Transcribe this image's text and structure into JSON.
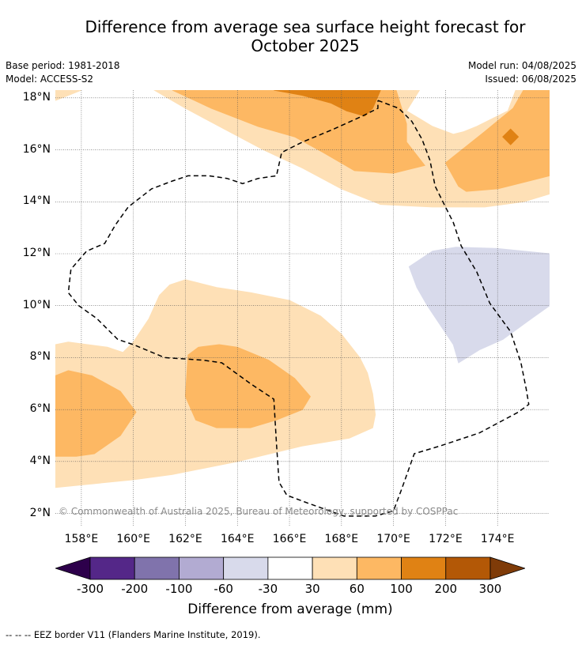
{
  "title_line1": "Difference from average sea surface height forecast for",
  "title_line2": "October 2025",
  "meta_left": [
    "Base period: 1981-2018",
    "Model: ACCESS-S2"
  ],
  "meta_right": [
    "Model run: 04/08/2025",
    "Issued: 06/08/2025"
  ],
  "copyright": "© Commonwealth of Australia 2025, Bureau of Meteorology, supported by COSPPac",
  "lat_labels": [
    {
      "text": "18°N",
      "value": 18
    },
    {
      "text": "16°N",
      "value": 16
    },
    {
      "text": "14°N",
      "value": 14
    },
    {
      "text": "12°N",
      "value": 12
    },
    {
      "text": "10°N",
      "value": 10
    },
    {
      "text": "8°N",
      "value": 8
    },
    {
      "text": "6°N",
      "value": 6
    },
    {
      "text": "4°N",
      "value": 4
    },
    {
      "text": "2°N",
      "value": 2
    }
  ],
  "lon_labels": [
    {
      "text": "158°E",
      "value": 158
    },
    {
      "text": "160°E",
      "value": 160
    },
    {
      "text": "162°E",
      "value": 162
    },
    {
      "text": "164°E",
      "value": 164
    },
    {
      "text": "166°E",
      "value": 166
    },
    {
      "text": "168°E",
      "value": 168
    },
    {
      "text": "170°E",
      "value": 170
    },
    {
      "text": "172°E",
      "value": 172
    },
    {
      "text": "174°E",
      "value": 174
    }
  ],
  "extent": {
    "lon": [
      157.0,
      176.0
    ],
    "lat": [
      1.5,
      18.3
    ]
  },
  "colorbar": {
    "label": "Difference from average (mm)",
    "ticks": [
      "-300",
      "-200",
      "-100",
      "-60",
      "-30",
      "30",
      "60",
      "100",
      "200",
      "300"
    ],
    "colors": [
      "#2d004b",
      "#542788",
      "#8073ac",
      "#b2abd2",
      "#d8daeb",
      "#ffffff",
      "#fee0b6",
      "#fdb863",
      "#e08214",
      "#b35806",
      "#7f3b08"
    ]
  },
  "regions": [
    {
      "level": "30 to 60",
      "color": "#fee0b6",
      "points": [
        [
          157,
          8.5
        ],
        [
          157.5,
          8.6
        ],
        [
          159,
          8.4
        ],
        [
          159.6,
          8.2
        ],
        [
          160,
          8.6
        ],
        [
          160.6,
          9.5
        ],
        [
          161,
          10.4
        ],
        [
          161.4,
          10.8
        ],
        [
          162,
          11
        ],
        [
          162.4,
          10.9
        ],
        [
          163.2,
          10.7
        ],
        [
          164.5,
          10.5
        ],
        [
          166,
          10.2
        ],
        [
          167.2,
          9.6
        ],
        [
          168,
          8.9
        ],
        [
          168.7,
          8
        ],
        [
          169,
          7.4
        ],
        [
          169.2,
          6.6
        ],
        [
          169.3,
          5.8
        ],
        [
          169.2,
          5.3
        ],
        [
          168.3,
          4.9
        ],
        [
          166.5,
          4.6
        ],
        [
          164,
          4
        ],
        [
          161.5,
          3.5
        ],
        [
          160,
          3.3
        ],
        [
          157,
          3
        ]
      ]
    },
    {
      "level": "60 to 100",
      "color": "#fdb863",
      "points": [
        [
          162.1,
          8.1
        ],
        [
          162.5,
          8.4
        ],
        [
          163.3,
          8.5
        ],
        [
          164,
          8.4
        ],
        [
          165.2,
          7.9
        ],
        [
          166.2,
          7.2
        ],
        [
          166.8,
          6.5
        ],
        [
          166.5,
          6
        ],
        [
          165.5,
          5.6
        ],
        [
          164.5,
          5.3
        ],
        [
          163.2,
          5.3
        ],
        [
          162.4,
          5.6
        ],
        [
          162,
          6.5
        ]
      ]
    },
    {
      "level": "60 to 100",
      "color": "#fdb863",
      "points": [
        [
          157,
          7.3
        ],
        [
          157.5,
          7.5
        ],
        [
          158.4,
          7.3
        ],
        [
          159.5,
          6.7
        ],
        [
          160.1,
          5.9
        ],
        [
          159.5,
          5
        ],
        [
          158.5,
          4.3
        ],
        [
          157.8,
          4.2
        ],
        [
          157,
          4.2
        ]
      ]
    },
    {
      "level": "30 to 60",
      "color": "#fee0b6",
      "points": [
        [
          157,
          18.3
        ],
        [
          157,
          17.9
        ],
        [
          157.5,
          18.1
        ],
        [
          158,
          18.3
        ]
      ]
    },
    {
      "level": "30 to 60",
      "color": "#fee0b6",
      "points": [
        [
          160.8,
          18.3
        ],
        [
          162,
          17.6
        ],
        [
          163.5,
          16.8
        ],
        [
          165,
          16
        ],
        [
          166.5,
          15.3
        ],
        [
          168,
          14.5
        ],
        [
          169.5,
          13.9
        ],
        [
          171.5,
          13.8
        ],
        [
          173.5,
          13.8
        ],
        [
          175,
          14
        ],
        [
          176,
          14.3
        ],
        [
          176,
          18.3
        ],
        [
          174.7,
          18.3
        ],
        [
          174.4,
          17.5
        ],
        [
          173.2,
          16.9
        ],
        [
          172.7,
          16.7
        ],
        [
          172.3,
          16.6
        ],
        [
          171.5,
          16.9
        ],
        [
          171,
          17.2
        ],
        [
          170.5,
          17.5
        ],
        [
          171,
          18.3
        ]
      ]
    },
    {
      "level": "60 to 100",
      "color": "#fdb863",
      "points": [
        [
          161.5,
          18.3
        ],
        [
          163,
          17.6
        ],
        [
          164.8,
          16.9
        ],
        [
          166.2,
          16.5
        ],
        [
          167.3,
          15.9
        ],
        [
          168.5,
          15.2
        ],
        [
          170,
          15.1
        ],
        [
          171.2,
          15.4
        ],
        [
          170.5,
          16.3
        ],
        [
          170.5,
          17
        ],
        [
          170.1,
          18.3
        ]
      ]
    },
    {
      "level": "100 to 200",
      "color": "#e08214",
      "points": [
        [
          165.4,
          18.3
        ],
        [
          166.5,
          18.1
        ],
        [
          167.6,
          17.8
        ],
        [
          168.2,
          17.5
        ],
        [
          168.9,
          17.3
        ],
        [
          169.2,
          17.6
        ],
        [
          169.5,
          18.3
        ]
      ]
    },
    {
      "level": "60 to 100",
      "color": "#fdb863",
      "points": [
        [
          172,
          15.5
        ],
        [
          173.5,
          16.7
        ],
        [
          174.6,
          17.6
        ],
        [
          175,
          18.3
        ],
        [
          176,
          18.3
        ],
        [
          176,
          15
        ],
        [
          175.2,
          14.8
        ],
        [
          174,
          14.5
        ],
        [
          172.8,
          14.4
        ],
        [
          172.5,
          14.6
        ]
      ]
    },
    {
      "level": "100 to 200",
      "color": "#e08214",
      "points": [
        [
          174.2,
          16.5
        ],
        [
          174.5,
          16.8
        ],
        [
          174.8,
          16.5
        ],
        [
          174.5,
          16.2
        ]
      ]
    },
    {
      "level": "-30 to -60",
      "color": "#d8daeb",
      "points": [
        [
          170.6,
          11.5
        ],
        [
          171.5,
          12.1
        ],
        [
          172.4,
          12.25
        ],
        [
          174,
          12.2
        ],
        [
          176,
          12
        ],
        [
          176,
          10
        ],
        [
          175.3,
          9.5
        ],
        [
          174.2,
          8.7
        ],
        [
          173.3,
          8.3
        ],
        [
          172.5,
          7.8
        ],
        [
          172.3,
          8.5
        ],
        [
          171.3,
          10
        ],
        [
          170.9,
          10.7
        ]
      ]
    }
  ],
  "eez_border": [
    [
      169.4,
      17.9
    ],
    [
      170.2,
      17.6
    ],
    [
      170.7,
      17.1
    ],
    [
      171.1,
      16.4
    ],
    [
      171.4,
      15.6
    ],
    [
      171.6,
      14.6
    ],
    [
      171.9,
      14
    ],
    [
      172.3,
      13.2
    ],
    [
      172.6,
      12.3
    ],
    [
      173.2,
      11.3
    ],
    [
      173.7,
      10.1
    ],
    [
      174.5,
      9
    ],
    [
      174.9,
      7.8
    ],
    [
      175.1,
      6.8
    ],
    [
      175.2,
      6.2
    ],
    [
      174.8,
      5.9
    ],
    [
      173.3,
      5.1
    ],
    [
      171.8,
      4.6
    ],
    [
      170.8,
      4.3
    ],
    [
      170.3,
      2.9
    ],
    [
      170,
      2.1
    ],
    [
      169.3,
      1.9
    ],
    [
      168.1,
      1.9
    ],
    [
      166.7,
      2.4
    ],
    [
      165.9,
      2.7
    ],
    [
      165.6,
      3.2
    ],
    [
      165.5,
      4.7
    ],
    [
      165.4,
      6.4
    ],
    [
      164.5,
      7
    ],
    [
      163.4,
      7.8
    ],
    [
      162.7,
      7.9
    ],
    [
      161.2,
      8
    ],
    [
      160,
      8.5
    ],
    [
      159.4,
      8.7
    ],
    [
      158.6,
      9.5
    ],
    [
      157.9,
      10
    ],
    [
      157.5,
      10.5
    ],
    [
      157.6,
      11.4
    ],
    [
      158.2,
      12.1
    ],
    [
      158.9,
      12.4
    ],
    [
      159.3,
      13.1
    ],
    [
      159.8,
      13.8
    ],
    [
      160.7,
      14.5
    ],
    [
      161.5,
      14.8
    ],
    [
      162.1,
      15
    ],
    [
      162.9,
      15
    ],
    [
      163.6,
      14.9
    ],
    [
      164.2,
      14.7
    ],
    [
      164.8,
      14.9
    ],
    [
      165.5,
      15
    ],
    [
      165.7,
      15.9
    ],
    [
      166.5,
      16.3
    ],
    [
      167.7,
      16.8
    ],
    [
      168.8,
      17.3
    ],
    [
      169.4,
      17.6
    ],
    [
      169.4,
      17.9
    ]
  ]
}
